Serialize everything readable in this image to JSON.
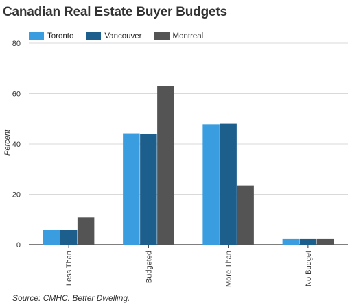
{
  "chart_data": {
    "type": "bar",
    "title": "Canadian Real Estate Buyer Budgets",
    "ylabel": "Percent",
    "xlabel": "",
    "categories": [
      "Less Than",
      "Budgeted",
      "More Than",
      "No Budget"
    ],
    "series": [
      {
        "name": "Toronto",
        "values": [
          5.8,
          44.2,
          47.8,
          2.2
        ]
      },
      {
        "name": "Vancouver",
        "values": [
          5.8,
          44.0,
          48.0,
          2.2
        ]
      },
      {
        "name": "Montreal",
        "values": [
          10.8,
          63.0,
          23.5,
          2.2
        ]
      }
    ],
    "ylim": [
      0,
      80
    ],
    "yticks": [
      0,
      20,
      40,
      60,
      80
    ],
    "grid": true,
    "legend_position": "top-left",
    "source": "Source: CMHC. Better Dwelling."
  },
  "colors": {
    "series": [
      "#3a9de0",
      "#1c5f8c",
      "#545454"
    ],
    "grid": "#d9d9d9",
    "axis": "#333333"
  }
}
